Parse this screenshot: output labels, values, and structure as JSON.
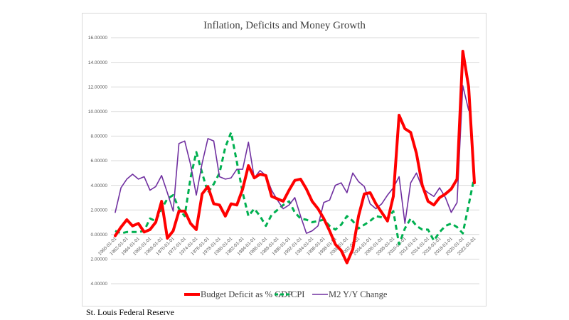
{
  "chart_data": {
    "type": "line",
    "title": "Inflation,  Deficits and Money Growth",
    "xlabel": "",
    "ylabel": "",
    "ylim": [
      -4,
      16
    ],
    "y_ticks": [
      16,
      14,
      12,
      10,
      8,
      6,
      4,
      2,
      0,
      -2,
      -4
    ],
    "y_tick_labels": [
      "16.00000",
      "14.00000",
      "12.00000",
      "10.00000",
      "8.00000",
      "6.00000",
      "4.00000",
      "2.00000",
      "0.00000",
      "2.00000",
      "4.00000"
    ],
    "x_tick_labels": [
      "1960-01-01",
      "1962-01-01",
      "1964-01-01",
      "1966-01-01",
      "1968-01-01",
      "1970-01-01",
      "1972-01-01",
      "1974-01-01",
      "1976-01-01",
      "1978-01-01",
      "1980-01-01",
      "1982-01-01",
      "1984-01-01",
      "1986-01-01",
      "1988-01-01",
      "1990-01-01",
      "1992-01-01",
      "1994-01-01",
      "1996-01-01",
      "1998-01-01",
      "2000-01-01",
      "2002-01-01",
      "2004-01-01",
      "2006-01-01",
      "2008-01-01",
      "2010-01-01",
      "2012-01-01",
      "2014-01-01",
      "2016-01-01",
      "2018-01-01",
      "2020-01-01",
      "2022-01-01"
    ],
    "x": [
      1960,
      1961,
      1962,
      1963,
      1964,
      1965,
      1966,
      1967,
      1968,
      1969,
      1970,
      1971,
      1972,
      1973,
      1974,
      1975,
      1976,
      1977,
      1978,
      1979,
      1980,
      1981,
      1982,
      1983,
      1984,
      1985,
      1986,
      1987,
      1988,
      1989,
      1990,
      1991,
      1992,
      1993,
      1994,
      1995,
      1996,
      1997,
      1998,
      1999,
      2000,
      2001,
      2002,
      2003,
      2004,
      2005,
      2006,
      2007,
      2008,
      2009,
      2010,
      2011,
      2012,
      2013,
      2014,
      2015,
      2016,
      2017,
      2018,
      2019,
      2020,
      2021,
      2022
    ],
    "grid": true,
    "legend_position": "bottom",
    "series": [
      {
        "name": "Budget Deficit as % GDP",
        "color": "#ff0000",
        "style": "solid-thick",
        "values": [
          -0.1,
          0.6,
          1.2,
          0.7,
          0.9,
          0.2,
          0.4,
          1.0,
          2.7,
          -0.3,
          0.3,
          1.9,
          1.9,
          0.9,
          0.4,
          3.3,
          3.9,
          2.5,
          2.4,
          1.5,
          2.5,
          2.4,
          3.7,
          5.6,
          4.6,
          4.9,
          4.8,
          3.1,
          2.9,
          2.7,
          3.6,
          4.4,
          4.5,
          3.7,
          2.7,
          2.1,
          1.3,
          0.3,
          -0.8,
          -1.3,
          -2.3,
          -1.2,
          1.5,
          3.3,
          3.4,
          2.5,
          1.8,
          1.1,
          3.1,
          9.7,
          8.6,
          8.3,
          6.6,
          4.0,
          2.7,
          2.4,
          3.0,
          3.3,
          3.7,
          4.5,
          14.9,
          12.0,
          4.2
        ]
      },
      {
        "name": "CPI",
        "color": "#00b050",
        "style": "dashed",
        "values": [
          0.3,
          0.1,
          0.2,
          0.2,
          0.2,
          0.3,
          1.3,
          1.1,
          2.1,
          2.9,
          3.2,
          2.1,
          1.5,
          4.6,
          6.7,
          5.0,
          3.4,
          4.1,
          5.0,
          7.1,
          8.3,
          5.9,
          3.4,
          1.5,
          2.1,
          1.5,
          0.7,
          1.6,
          2.0,
          2.4,
          2.7,
          1.8,
          1.3,
          1.2,
          1.0,
          1.1,
          1.2,
          0.7,
          0.4,
          0.8,
          1.5,
          1.1,
          0.5,
          0.8,
          1.1,
          1.5,
          1.4,
          1.3,
          1.9,
          -0.8,
          0.5,
          1.3,
          0.7,
          0.4,
          0.4,
          -0.5,
          0.2,
          0.7,
          0.9,
          0.6,
          0.1,
          2.4,
          4.7
        ]
      },
      {
        "name": "M2 Y/Y Change",
        "color": "#7030a0",
        "style": "solid-thin",
        "values": [
          1.8,
          3.8,
          4.5,
          4.9,
          4.5,
          4.7,
          3.6,
          3.9,
          4.8,
          3.4,
          1.9,
          7.4,
          7.6,
          5.7,
          3.2,
          5.8,
          7.8,
          7.6,
          4.7,
          4.5,
          4.6,
          5.3,
          5.3,
          7.5,
          4.6,
          5.2,
          4.8,
          3.6,
          2.8,
          2.1,
          2.4,
          3.0,
          1.5,
          0.1,
          0.3,
          0.7,
          2.6,
          2.8,
          4.0,
          4.2,
          3.4,
          5.0,
          4.3,
          3.9,
          2.5,
          2.1,
          2.5,
          3.2,
          3.8,
          4.7,
          0.9,
          4.2,
          5.0,
          3.8,
          3.4,
          3.1,
          3.8,
          3.0,
          1.8,
          2.6,
          12.1,
          10.1,
          null
        ]
      }
    ]
  },
  "footer": {
    "source": "St. Louis Federal Reserve"
  }
}
